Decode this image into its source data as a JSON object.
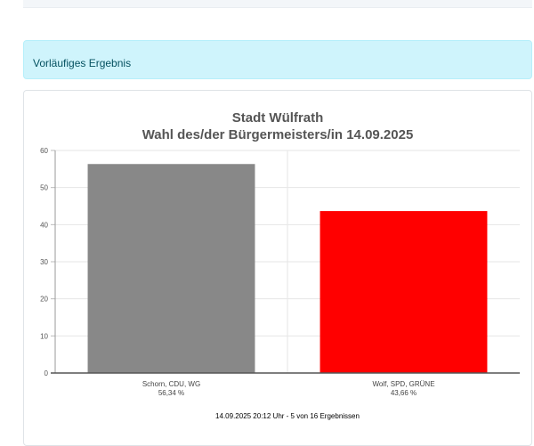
{
  "alert": {
    "text": "Vorläufiges Ergebnis"
  },
  "chart_data": {
    "type": "bar",
    "title": "Stadt Wülfrath",
    "subtitle": "Wahl des/der Bürgermeisters/in 14.09.2025",
    "categories": [
      "Schorn, CDU, WG",
      "Wolf, SPD, GRÜNE"
    ],
    "value_labels": [
      "56,34 %",
      "43,66 %"
    ],
    "values": [
      56.34,
      43.66
    ],
    "colors": [
      "#888888",
      "#ff0000"
    ],
    "ylim": [
      0,
      60
    ],
    "yticks": [
      0,
      10,
      20,
      30,
      40,
      50,
      60
    ],
    "grid": true,
    "footer": "14.09.2025 20:12 Uhr - 5 von 16 Ergebnissen"
  }
}
